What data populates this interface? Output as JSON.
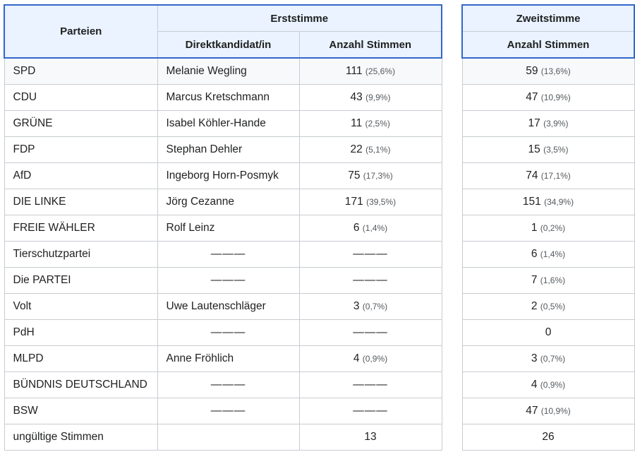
{
  "headers": {
    "parteien": "Parteien",
    "erststimme": "Erststimme",
    "direktkandidat": "Direktkandidat/in",
    "anzahl_erst": "Anzahl Stimmen",
    "zweitstimme": "Zweitstimme",
    "anzahl_zweit": "Anzahl Stimmen"
  },
  "rows": [
    {
      "party": "SPD",
      "candidate": "Melanie Wegling",
      "erst": "111",
      "erst_pct": "(25,6%)",
      "zweit": "59",
      "zweit_pct": "(13,6%)"
    },
    {
      "party": "CDU",
      "candidate": "Marcus Kretschmann",
      "erst": "43",
      "erst_pct": "(9,9%)",
      "zweit": "47",
      "zweit_pct": "(10,9%)"
    },
    {
      "party": "GRÜNE",
      "candidate": "Isabel Köhler-Hande",
      "erst": "11",
      "erst_pct": "(2,5%)",
      "zweit": "17",
      "zweit_pct": "(3,9%)"
    },
    {
      "party": "FDP",
      "candidate": "Stephan Dehler",
      "erst": "22",
      "erst_pct": "(5,1%)",
      "zweit": "15",
      "zweit_pct": "(3,5%)"
    },
    {
      "party": "AfD",
      "candidate": "Ingeborg Horn-Posmyk",
      "erst": "75",
      "erst_pct": "(17,3%)",
      "zweit": "74",
      "zweit_pct": "(17,1%)"
    },
    {
      "party": "DIE LINKE",
      "candidate": "Jörg Cezanne",
      "erst": "171",
      "erst_pct": "(39,5%)",
      "zweit": "151",
      "zweit_pct": "(34,9%)"
    },
    {
      "party": "FREIE WÄHLER",
      "candidate": "Rolf Leinz",
      "erst": "6",
      "erst_pct": "(1,4%)",
      "zweit": "1",
      "zweit_pct": "(0,2%)"
    },
    {
      "party": "Tierschutzpartei",
      "candidate": "———",
      "erst": "———",
      "erst_pct": "",
      "zweit": "6",
      "zweit_pct": "(1,4%)"
    },
    {
      "party": "Die PARTEI",
      "candidate": "———",
      "erst": "———",
      "erst_pct": "",
      "zweit": "7",
      "zweit_pct": "(1,6%)"
    },
    {
      "party": "Volt",
      "candidate": "Uwe Lautenschläger",
      "erst": "3",
      "erst_pct": "(0,7%)",
      "zweit": "2",
      "zweit_pct": "(0,5%)"
    },
    {
      "party": "PdH",
      "candidate": "———",
      "erst": "———",
      "erst_pct": "",
      "zweit": "0",
      "zweit_pct": ""
    },
    {
      "party": "MLPD",
      "candidate": "Anne Fröhlich",
      "erst": "4",
      "erst_pct": "(0,9%)",
      "zweit": "3",
      "zweit_pct": "(0,7%)"
    },
    {
      "party": "BÜNDNIS DEUTSCHLAND",
      "candidate": "———",
      "erst": "———",
      "erst_pct": "",
      "zweit": "4",
      "zweit_pct": "(0,9%)"
    },
    {
      "party": "BSW",
      "candidate": "———",
      "erst": "———",
      "erst_pct": "",
      "zweit": "47",
      "zweit_pct": "(10,9%)"
    },
    {
      "party": "ungültige Stimmen",
      "candidate": "",
      "erst": "13",
      "erst_pct": "",
      "zweit": "26",
      "zweit_pct": ""
    }
  ]
}
